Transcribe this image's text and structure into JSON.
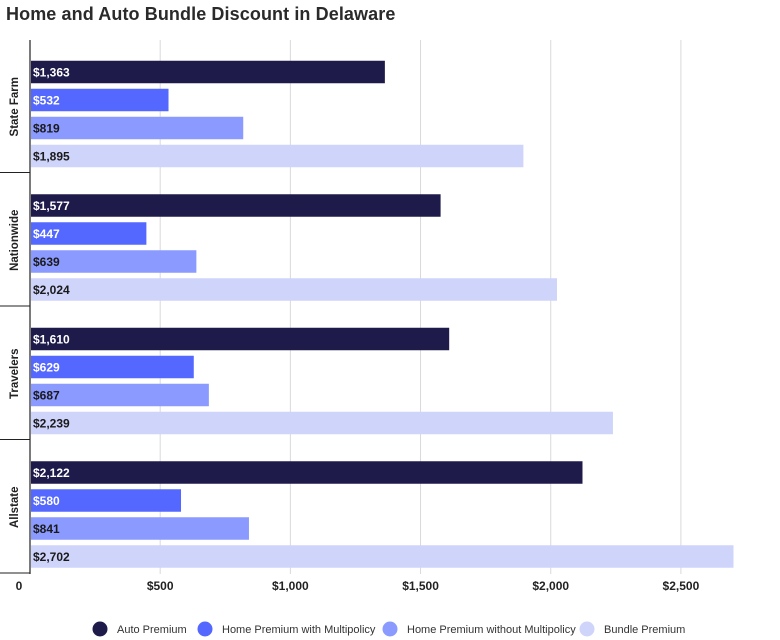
{
  "chart_data": {
    "type": "bar",
    "orientation": "horizontal",
    "title": "Home and Auto Bundle Discount in Delaware",
    "categories": [
      "State Farm",
      "Nationwide",
      "Travelers",
      "Allstate"
    ],
    "series": [
      {
        "name": "Auto Premium",
        "color": "#1e1b4b",
        "values": [
          1363,
          1577,
          1610,
          2122
        ],
        "labels": [
          "$1,363",
          "$1,577",
          "$1,610",
          "$2,122"
        ]
      },
      {
        "name": "Home Premium with Multipolicy",
        "color": "#5468ff",
        "values": [
          532,
          447,
          629,
          580
        ],
        "labels": [
          "$532",
          "$447",
          "$629",
          "$580"
        ]
      },
      {
        "name": "Home Premium without Multipolicy",
        "color": "#8b9aff",
        "values": [
          819,
          639,
          687,
          841
        ],
        "labels": [
          "$819",
          "$639",
          "$687",
          "$841"
        ]
      },
      {
        "name": "Bundle Premium",
        "color": "#cfd4fb",
        "values": [
          1895,
          2024,
          2239,
          2702
        ],
        "labels": [
          "$1,895",
          "$2,024",
          "$2,239",
          "$2,702"
        ]
      }
    ],
    "xlim": [
      0,
      2750
    ],
    "xticks": [
      0,
      500,
      1000,
      1500,
      2000,
      2500
    ],
    "xtick_labels": [
      "0",
      "$500",
      "$1,000",
      "$1,500",
      "$2,000",
      "$2,500"
    ],
    "grid": true,
    "legend_position": "bottom"
  }
}
